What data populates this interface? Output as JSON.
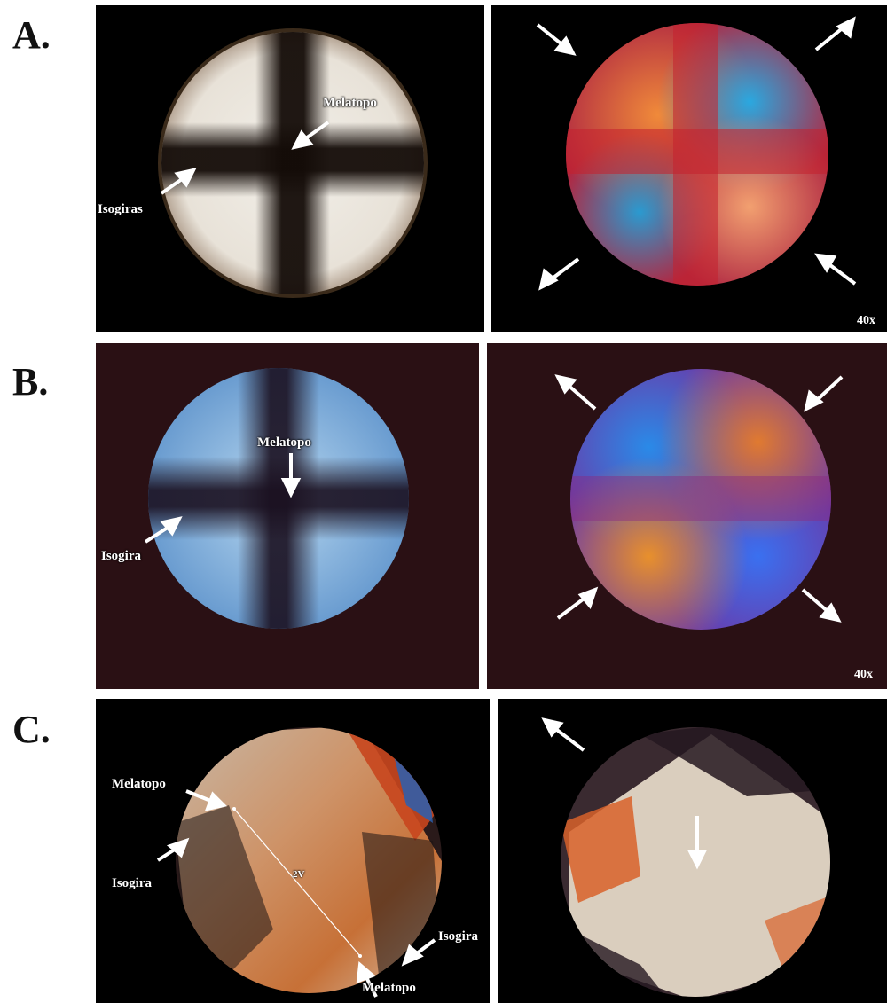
{
  "rows": [
    {
      "label": "A.",
      "left_annotations": {
        "melatopo": "Melatopo",
        "isogira": "Isogiras"
      },
      "magnification": "40x"
    },
    {
      "label": "B.",
      "left_annotations": {
        "melatopo": "Melatopo",
        "isogira": "Isogira"
      },
      "magnification": "40x"
    },
    {
      "label": "C.",
      "left_annotations": {
        "melatopo_top": "Melatopo",
        "isogira_left": "Isogira",
        "two_v": "2V",
        "isogira_right": "Isogira",
        "melatopo_bottom": "Melatopo"
      }
    }
  ],
  "colors": {
    "background": "#000000",
    "panel_b_background": "#2a1014",
    "arrow": "#ffffff"
  }
}
